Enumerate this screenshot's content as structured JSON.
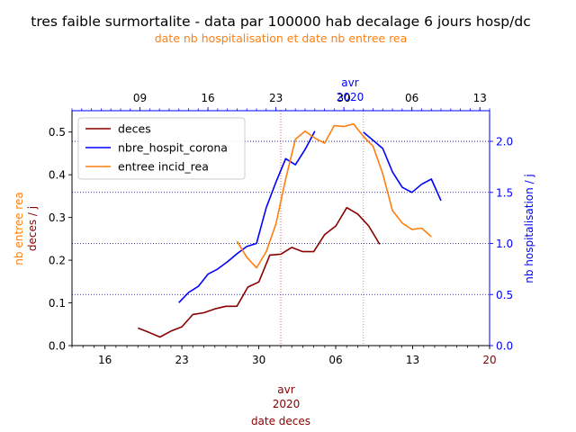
{
  "title": "tres faible surmortalite - data par 100000 hab decalage 6 jours hosp/dc",
  "subtitle": "date nb hospitalisation et date nb entree rea",
  "colors": {
    "deces": "#8b0000",
    "hospit": "#0000ff",
    "rea": "#ff7f0e",
    "bottom_axis_text": "#8b0000",
    "grid": "#0000aa"
  },
  "chart_data": {
    "type": "line",
    "title": "tres faible surmortalite - data par 100000 hab decalage 6 jours hosp/dc",
    "subtitle": "date nb hospitalisation et date nb entree rea",
    "bottom_axis": {
      "label": "date deces",
      "month_label": "avr",
      "year_label": "2020",
      "range": [
        "2020-03-13",
        "2020-04-20"
      ],
      "ticks": [
        {
          "date": "2020-03-16",
          "label": "16"
        },
        {
          "date": "2020-03-23",
          "label": "23"
        },
        {
          "date": "2020-03-30",
          "label": "30"
        },
        {
          "date": "2020-04-06",
          "label": "06"
        },
        {
          "date": "2020-04-13",
          "label": "13"
        },
        {
          "date": "2020-04-20",
          "label": "20"
        }
      ]
    },
    "top_axis": {
      "label": "date nb hospitalisation et date nb entree rea",
      "month_label": "avr",
      "year_label": "2020",
      "range": [
        "2020-03-02",
        "2020-04-14"
      ],
      "ticks": [
        {
          "date": "2020-03-09",
          "label": "09"
        },
        {
          "date": "2020-03-16",
          "label": "16"
        },
        {
          "date": "2020-03-23",
          "label": "23"
        },
        {
          "date": "2020-03-30",
          "label": "30"
        },
        {
          "date": "2020-04-06",
          "label": "06"
        },
        {
          "date": "2020-04-13",
          "label": "13"
        }
      ]
    },
    "left_axis": {
      "label_line1": "nb entree rea",
      "label_line2": "deces / j",
      "ylim": [
        0,
        0.55
      ],
      "ticks": [
        0.0,
        0.1,
        0.2,
        0.3,
        0.4,
        0.5
      ],
      "tick_labels": [
        "0.0",
        "0.1",
        "0.2",
        "0.3",
        "0.4",
        "0.5"
      ]
    },
    "right_axis": {
      "label": "nb hospitalisation / j",
      "ylim": [
        0,
        2.3
      ],
      "ticks": [
        0.0,
        0.5,
        1.0,
        1.5,
        2.0
      ],
      "tick_labels": [
        "0.0",
        "0.5",
        "1.0",
        "1.5",
        "2.0"
      ]
    },
    "grid": "horizontal dotted on right axis",
    "legend": "upper left",
    "series": [
      {
        "name": "deces",
        "axis": "bottom-left",
        "x_start": "2020-03-19",
        "values": [
          0.041,
          0.031,
          0.02,
          0.034,
          0.044,
          0.073,
          0.077,
          0.086,
          0.092,
          0.092,
          0.137,
          0.149,
          0.212,
          0.214,
          0.23,
          0.22,
          0.22,
          0.26,
          0.28,
          0.323,
          0.308,
          0.28,
          0.237
        ]
      },
      {
        "name": "nbre_hospit_corona",
        "axis": "top-right",
        "x_start": "2020-03-13",
        "values": [
          0.42,
          0.52,
          0.58,
          0.7,
          0.75,
          0.82,
          0.9,
          0.97,
          1.0,
          1.35,
          1.6,
          1.83,
          1.77,
          1.92,
          2.1
        ]
      },
      {
        "name": "nbre_hospit_corona",
        "axis": "top-right",
        "x_start": "2020-04-01",
        "values": [
          2.09,
          2.01,
          1.93,
          1.7,
          1.55,
          1.5,
          1.58,
          1.63,
          1.42
        ]
      },
      {
        "name": "entree incid_rea",
        "axis": "top-left",
        "x_start": "2020-03-19",
        "values": [
          0.244,
          0.207,
          0.182,
          0.22,
          0.285,
          0.39,
          0.483,
          0.502,
          0.486,
          0.474,
          0.515,
          0.513,
          0.519,
          0.49,
          0.467,
          0.402,
          0.316,
          0.287,
          0.272,
          0.275,
          0.255
        ]
      }
    ],
    "reference_lines": [
      {
        "axis": "bottom",
        "date": "2020-04-01",
        "style": "dotted"
      },
      {
        "axis": "top",
        "date": "2020-04-01",
        "style": "dotted"
      }
    ]
  }
}
